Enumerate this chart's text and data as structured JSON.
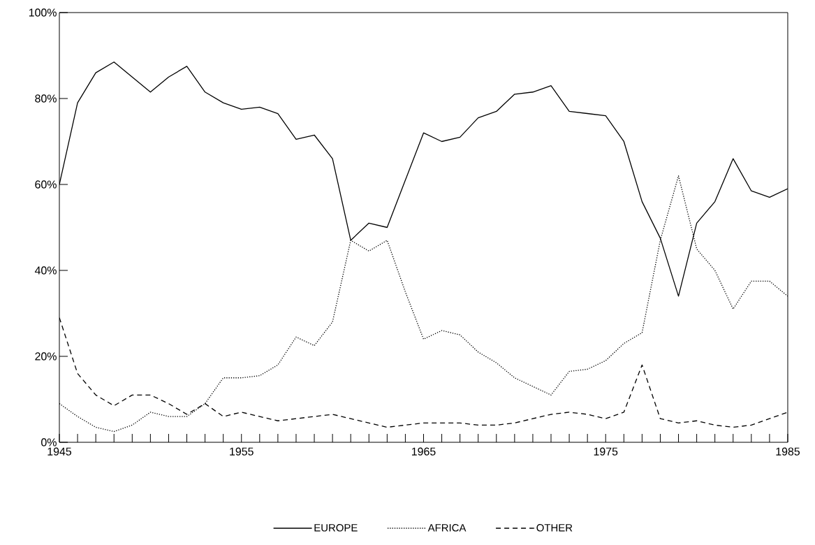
{
  "chart_data": {
    "type": "line",
    "x": [
      1945,
      1946,
      1947,
      1948,
      1949,
      1950,
      1951,
      1952,
      1953,
      1954,
      1955,
      1956,
      1957,
      1958,
      1959,
      1960,
      1961,
      1962,
      1963,
      1964,
      1965,
      1966,
      1967,
      1968,
      1969,
      1970,
      1971,
      1972,
      1973,
      1974,
      1975,
      1976,
      1977,
      1978,
      1979,
      1980,
      1981,
      1982,
      1983,
      1984,
      1985
    ],
    "series": [
      {
        "name": "EUROPE",
        "color": "#000000",
        "line_style": "solid",
        "values": [
          60,
          79,
          86,
          88.5,
          85,
          81.5,
          85,
          87.5,
          81.5,
          79,
          77.5,
          78,
          76.5,
          70.5,
          71.5,
          66,
          47,
          51,
          50,
          61,
          72,
          70,
          71,
          75.5,
          77,
          81,
          81.5,
          83,
          77,
          76.5,
          76,
          70,
          56,
          47.5,
          34,
          51,
          56,
          66,
          58.5,
          57,
          59
        ]
      },
      {
        "name": "AFRICA",
        "color": "#000000",
        "line_style": "dotted",
        "values": [
          9,
          6,
          3.5,
          2.5,
          4,
          7,
          6,
          6,
          9,
          15,
          15,
          15.5,
          18,
          24.5,
          22.5,
          28,
          47,
          44.5,
          47,
          35,
          24,
          26,
          25,
          21,
          18.5,
          15,
          13,
          11,
          16.5,
          17,
          19,
          23,
          25.5,
          47,
          62,
          45,
          40,
          31,
          37.5,
          37.5,
          34
        ]
      },
      {
        "name": "OTHER",
        "color": "#000000",
        "line_style": "dashed",
        "values": [
          29,
          16,
          11,
          8.5,
          11,
          11,
          9,
          6.5,
          9,
          6,
          7,
          6,
          5,
          5.5,
          6,
          6.5,
          5.5,
          4.5,
          3.5,
          4,
          4.5,
          4.5,
          4.5,
          4,
          4,
          4.5,
          5.5,
          6.5,
          7,
          6.5,
          5.5,
          7,
          18,
          5.5,
          4.5,
          5,
          4,
          3.5,
          4,
          5.5,
          7
        ]
      }
    ],
    "xlim": [
      1945,
      1985
    ],
    "xticks": [
      1945,
      {
        "value": 1946,
        "label": null
      },
      {
        "value": 1947,
        "label": null
      },
      {
        "value": 1948,
        "label": null
      },
      {
        "value": 1949,
        "label": null
      },
      {
        "value": 1950,
        "label": null
      },
      {
        "value": 1951,
        "label": null
      },
      {
        "value": 1952,
        "label": null
      },
      {
        "value": 1953,
        "label": null
      },
      {
        "value": 1954,
        "label": null
      },
      1955,
      {
        "value": 1956,
        "label": null
      },
      {
        "value": 1957,
        "label": null
      },
      {
        "value": 1958,
        "label": null
      },
      {
        "value": 1959,
        "label": null
      },
      {
        "value": 1960,
        "label": null
      },
      {
        "value": 1961,
        "label": null
      },
      {
        "value": 1962,
        "label": null
      },
      {
        "value": 1963,
        "label": null
      },
      {
        "value": 1964,
        "label": null
      },
      1965,
      {
        "value": 1966,
        "label": null
      },
      {
        "value": 1967,
        "label": null
      },
      {
        "value": 1968,
        "label": null
      },
      {
        "value": 1969,
        "label": null
      },
      {
        "value": 1970,
        "label": null
      },
      {
        "value": 1971,
        "label": null
      },
      {
        "value": 1972,
        "label": null
      },
      {
        "value": 1973,
        "label": null
      },
      {
        "value": 1974,
        "label": null
      },
      1975,
      {
        "value": 1976,
        "label": null
      },
      {
        "value": 1977,
        "label": null
      },
      {
        "value": 1978,
        "label": null
      },
      {
        "value": 1979,
        "label": null
      },
      {
        "value": 1980,
        "label": null
      },
      {
        "value": 1981,
        "label": null
      },
      {
        "value": 1982,
        "label": null
      },
      {
        "value": 1983,
        "label": null
      },
      {
        "value": 1984,
        "label": null
      },
      1985
    ],
    "ylim": [
      0,
      100
    ],
    "yticks": [
      {
        "value": 0,
        "label": "0%"
      },
      {
        "value": 20,
        "label": "20%"
      },
      {
        "value": 40,
        "label": "40%"
      },
      {
        "value": 60,
        "label": "60%"
      },
      {
        "value": 80,
        "label": "80%"
      },
      {
        "value": 100,
        "label": "100%"
      }
    ],
    "legend": "bottom",
    "grid": false,
    "marker": "none"
  }
}
